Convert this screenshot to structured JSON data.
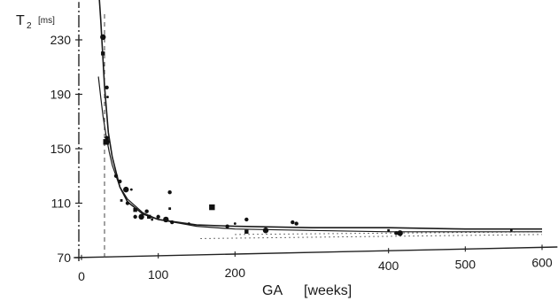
{
  "chart_data": {
    "type": "scatter",
    "ylabel": "T2",
    "ylabel_subscript": "2",
    "ylabel_main": "T",
    "yunit": "[ms]",
    "xlabel": "GA",
    "xunit": "[weeks]",
    "ylim": [
      70,
      250
    ],
    "xlim": [
      -10,
      620
    ],
    "y_ticks": [
      70,
      110,
      150,
      190,
      230
    ],
    "x_ticks": [
      0,
      100,
      200,
      400,
      500,
      600
    ],
    "grid": false,
    "points": [
      [
        28,
        232
      ],
      [
        28,
        220
      ],
      [
        33,
        195
      ],
      [
        34,
        188
      ],
      [
        33,
        158
      ],
      [
        32,
        155
      ],
      [
        35,
        155
      ],
      [
        45,
        130
      ],
      [
        50,
        126
      ],
      [
        52,
        112
      ],
      [
        58,
        120
      ],
      [
        60,
        110
      ],
      [
        65,
        120
      ],
      [
        70,
        105
      ],
      [
        70,
        100
      ],
      [
        78,
        100
      ],
      [
        85,
        104
      ],
      [
        88,
        100
      ],
      [
        92,
        98
      ],
      [
        100,
        100
      ],
      [
        110,
        98
      ],
      [
        115,
        106
      ],
      [
        115,
        118
      ],
      [
        118,
        96
      ],
      [
        140,
        95
      ],
      [
        170,
        107
      ],
      [
        190,
        93
      ],
      [
        200,
        95
      ],
      [
        215,
        98
      ],
      [
        215,
        89
      ],
      [
        240,
        90
      ],
      [
        275,
        96
      ],
      [
        280,
        95
      ],
      [
        400,
        90
      ],
      [
        410,
        88
      ],
      [
        415,
        88
      ],
      [
        560,
        90
      ]
    ],
    "series": [
      {
        "style": "solid",
        "x": [
          22,
          25,
          30,
          35,
          40,
          50,
          60,
          80,
          100,
          150,
          200,
          300,
          400,
          500,
          600
        ],
        "y": [
          270,
          245,
          196,
          162,
          144,
          122,
          111,
          102,
          98,
          94,
          93,
          92,
          92,
          91,
          91
        ]
      },
      {
        "style": "solid",
        "x": [
          22,
          25,
          28,
          32,
          36,
          40,
          50,
          60,
          80,
          100,
          150,
          200,
          300,
          400,
          500,
          600
        ],
        "y": [
          203,
          188,
          174,
          160,
          148,
          138,
          122,
          113,
          103,
          98,
          93,
          91,
          90,
          89,
          89,
          89
        ]
      }
    ],
    "reference_lines": [
      {
        "style": "dashed",
        "x": [
          30,
          30
        ],
        "y": [
          70,
          250
        ]
      },
      {
        "style": "dotted",
        "x": [
          155,
          600
        ],
        "y": [
          84,
          87
        ]
      },
      {
        "style": "dotted",
        "x": [
          200,
          600
        ],
        "y": [
          87,
          89
        ]
      }
    ]
  }
}
